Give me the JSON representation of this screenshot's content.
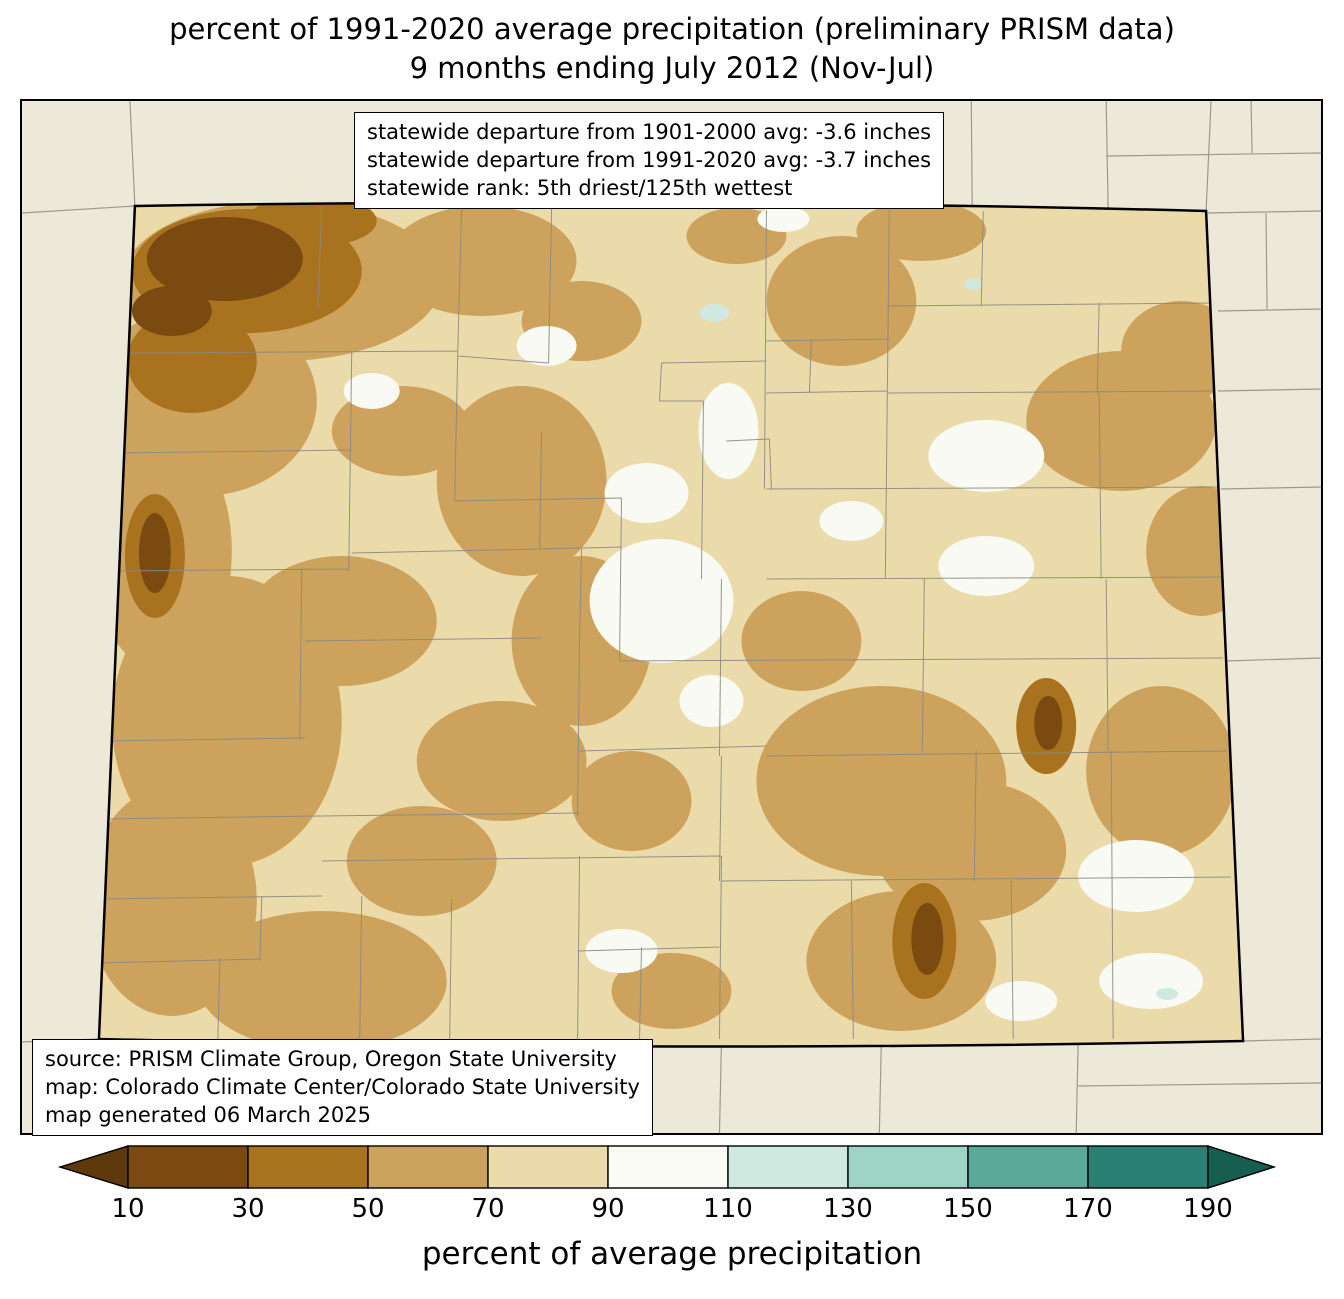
{
  "title": {
    "line1": "percent of 1991-2020 average precipitation (preliminary PRISM data)",
    "line2": "9 months ending July 2012 (Nov-Jul)"
  },
  "stats_box": {
    "line1": "statewide departure from 1901-2000 avg: -3.6 inches",
    "line2": "statewide departure from 1991-2020 avg: -3.7 inches",
    "line3": "statewide rank: 5th driest/125th wettest"
  },
  "source_box": {
    "line1": "source: PRISM Climate Group, Oregon State University",
    "line2": "map: Colorado Climate Center/Colorado State University",
    "line3": "map generated 06 March 2025"
  },
  "colorbar": {
    "label": "percent of average precipitation",
    "ticks": [
      "10",
      "30",
      "50",
      "70",
      "90",
      "110",
      "130",
      "150",
      "170",
      "190"
    ],
    "segment_colors": [
      "#7a4a10",
      "#a9721f",
      "#cda25c",
      "#ecdbaa",
      "#fbfbf6",
      "#cfe9e1",
      "#9cd4c6",
      "#5aa999",
      "#2a8173"
    ],
    "under_arrow_color": "#5e390b",
    "over_arrow_color": "#155e51",
    "segment_ranges": [
      "10-30",
      "30-50",
      "50-70",
      "70-90",
      "90-110",
      "110-130",
      "130-150",
      "150-170",
      "170-190"
    ]
  },
  "map_colors": {
    "outside_state_background": "#ece9d8",
    "state_base_70_90": "#ecdbaa",
    "fill_50_70": "#cda25c",
    "fill_30_50": "#a9721f",
    "fill_10_30": "#7a4a10",
    "fill_90_110": "#fafaf4",
    "fill_110_130": "#cfe9e1"
  }
}
